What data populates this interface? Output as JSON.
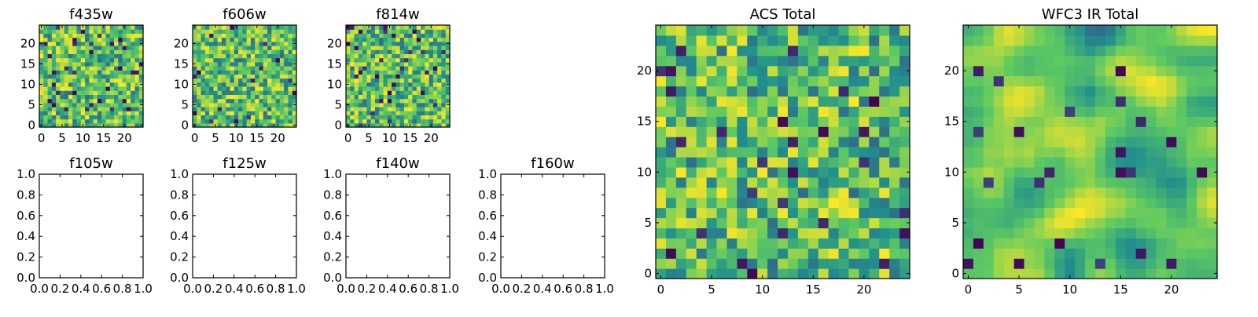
{
  "chart_data": [
    {
      "type": "heatmap",
      "title": "f435w",
      "grid": "25x25",
      "xticks": [
        "0",
        "5",
        "10",
        "15",
        "20"
      ],
      "yticks": [
        "0",
        "5",
        "10",
        "15",
        "20"
      ],
      "xlim": [
        -0.5,
        24.5
      ],
      "ylim": [
        -0.5,
        24.5
      ],
      "colormap": "viridis",
      "seed": 11,
      "smoothing": 0
    },
    {
      "type": "heatmap",
      "title": "f606w",
      "grid": "25x25",
      "xticks": [
        "0",
        "5",
        "10",
        "15",
        "20"
      ],
      "yticks": [
        "0",
        "5",
        "10",
        "15",
        "20"
      ],
      "xlim": [
        -0.5,
        24.5
      ],
      "ylim": [
        -0.5,
        24.5
      ],
      "colormap": "viridis",
      "seed": 23,
      "smoothing": 0
    },
    {
      "type": "heatmap",
      "title": "f814w",
      "grid": "25x25",
      "xticks": [
        "0",
        "5",
        "10",
        "15",
        "20"
      ],
      "yticks": [
        "0",
        "5",
        "10",
        "15",
        "20"
      ],
      "xlim": [
        -0.5,
        24.5
      ],
      "ylim": [
        -0.5,
        24.5
      ],
      "colormap": "viridis",
      "seed": 37,
      "smoothing": 0
    },
    {
      "type": "empty",
      "title": "f105w",
      "xticks": [
        "0.0",
        "0.2",
        "0.4",
        "0.6",
        "0.8",
        "1.0"
      ],
      "yticks": [
        "0.0",
        "0.2",
        "0.4",
        "0.6",
        "0.8",
        "1.0"
      ],
      "xlim": [
        0,
        1
      ],
      "ylim": [
        0,
        1
      ]
    },
    {
      "type": "empty",
      "title": "f125w",
      "xticks": [
        "0.0",
        "0.2",
        "0.4",
        "0.6",
        "0.8",
        "1.0"
      ],
      "yticks": [
        "0.0",
        "0.2",
        "0.4",
        "0.6",
        "0.8",
        "1.0"
      ],
      "xlim": [
        0,
        1
      ],
      "ylim": [
        0,
        1
      ]
    },
    {
      "type": "empty",
      "title": "f140w",
      "xticks": [
        "0.0",
        "0.2",
        "0.4",
        "0.6",
        "0.8",
        "1.0"
      ],
      "yticks": [
        "0.0",
        "0.2",
        "0.4",
        "0.6",
        "0.8",
        "1.0"
      ],
      "xlim": [
        0,
        1
      ],
      "ylim": [
        0,
        1
      ]
    },
    {
      "type": "empty",
      "title": "f160w",
      "xticks": [
        "0.0",
        "0.2",
        "0.4",
        "0.6",
        "0.8",
        "1.0"
      ],
      "yticks": [
        "0.0",
        "0.2",
        "0.4",
        "0.6",
        "0.8",
        "1.0"
      ],
      "xlim": [
        0,
        1
      ],
      "ylim": [
        0,
        1
      ]
    },
    {
      "type": "heatmap",
      "title": "ACS Total",
      "grid": "25x25",
      "xticks": [
        "0",
        "5",
        "10",
        "15",
        "20"
      ],
      "yticks": [
        "0",
        "5",
        "10",
        "15",
        "20"
      ],
      "xlim": [
        -0.5,
        24.5
      ],
      "ylim": [
        -0.5,
        24.5
      ],
      "colormap": "viridis",
      "seed": 53,
      "smoothing": 0
    },
    {
      "type": "heatmap",
      "title": "WFC3 IR Total",
      "grid": "25x25",
      "xticks": [
        "0",
        "5",
        "10",
        "15",
        "20"
      ],
      "yticks": [
        "0",
        "5",
        "10",
        "15",
        "20"
      ],
      "xlim": [
        -0.5,
        24.5
      ],
      "ylim": [
        -0.5,
        24.5
      ],
      "colormap": "viridis",
      "seed": 71,
      "smoothing": 2
    }
  ],
  "colors": {
    "axis": "#000000",
    "background": "#ffffff",
    "viridis": [
      "#440154",
      "#3b528b",
      "#21918c",
      "#5ec962",
      "#fde725"
    ]
  }
}
